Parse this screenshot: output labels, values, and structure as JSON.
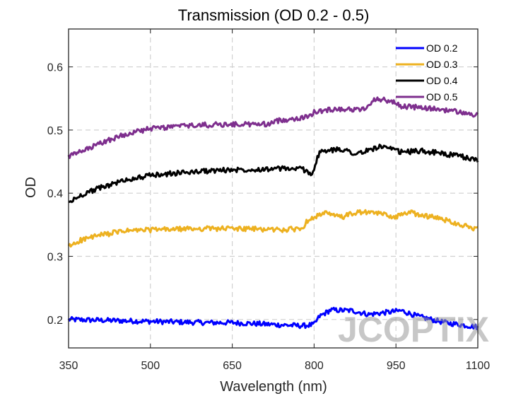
{
  "chart_data": {
    "type": "line",
    "title": "Transmission (OD 0.2 - 0.5)",
    "xlabel": "Wavelength (nm)",
    "ylabel": "OD",
    "xlim": [
      350,
      1100
    ],
    "ylim": [
      0.155,
      0.66
    ],
    "xticks": [
      350,
      500,
      650,
      800,
      950,
      1100
    ],
    "yticks": [
      0.2,
      0.3,
      0.4,
      0.5,
      0.6
    ],
    "ytick_labels": [
      "0.2",
      "0.3",
      "0.4",
      "0.5",
      "0.6"
    ],
    "grid": true,
    "legend_position": "top-right",
    "watermark": "JCOPTIX",
    "series": [
      {
        "name": "OD 0.2",
        "color": "#0000ff",
        "points": [
          [
            350,
            0.2
          ],
          [
            400,
            0.199
          ],
          [
            450,
            0.198
          ],
          [
            500,
            0.197
          ],
          [
            550,
            0.196
          ],
          [
            600,
            0.195
          ],
          [
            650,
            0.195
          ],
          [
            700,
            0.193
          ],
          [
            750,
            0.191
          ],
          [
            780,
            0.19
          ],
          [
            800,
            0.192
          ],
          [
            810,
            0.205
          ],
          [
            830,
            0.215
          ],
          [
            870,
            0.214
          ],
          [
            900,
            0.208
          ],
          [
            920,
            0.21
          ],
          [
            960,
            0.214
          ],
          [
            990,
            0.205
          ],
          [
            1040,
            0.195
          ],
          [
            1100,
            0.188
          ]
        ],
        "noise": 0.004
      },
      {
        "name": "OD 0.3",
        "color": "#edb120",
        "points": [
          [
            350,
            0.315
          ],
          [
            370,
            0.325
          ],
          [
            400,
            0.332
          ],
          [
            450,
            0.34
          ],
          [
            500,
            0.342
          ],
          [
            550,
            0.343
          ],
          [
            600,
            0.344
          ],
          [
            650,
            0.344
          ],
          [
            700,
            0.343
          ],
          [
            750,
            0.342
          ],
          [
            780,
            0.345
          ],
          [
            790,
            0.36
          ],
          [
            820,
            0.368
          ],
          [
            850,
            0.362
          ],
          [
            880,
            0.37
          ],
          [
            920,
            0.368
          ],
          [
            950,
            0.362
          ],
          [
            970,
            0.37
          ],
          [
            1000,
            0.365
          ],
          [
            1040,
            0.358
          ],
          [
            1070,
            0.35
          ],
          [
            1100,
            0.343
          ]
        ],
        "noise": 0.004
      },
      {
        "name": "OD 0.4",
        "color": "#000000",
        "points": [
          [
            350,
            0.385
          ],
          [
            380,
            0.4
          ],
          [
            420,
            0.412
          ],
          [
            460,
            0.422
          ],
          [
            500,
            0.428
          ],
          [
            550,
            0.432
          ],
          [
            600,
            0.435
          ],
          [
            650,
            0.437
          ],
          [
            700,
            0.438
          ],
          [
            750,
            0.439
          ],
          [
            780,
            0.438
          ],
          [
            795,
            0.43
          ],
          [
            800,
            0.44
          ],
          [
            810,
            0.465
          ],
          [
            850,
            0.47
          ],
          [
            880,
            0.462
          ],
          [
            920,
            0.474
          ],
          [
            960,
            0.465
          ],
          [
            1000,
            0.467
          ],
          [
            1040,
            0.462
          ],
          [
            1070,
            0.458
          ],
          [
            1100,
            0.452
          ]
        ],
        "noise": 0.004
      },
      {
        "name": "OD 0.5",
        "color": "#7e2f8e",
        "points": [
          [
            350,
            0.458
          ],
          [
            380,
            0.468
          ],
          [
            420,
            0.483
          ],
          [
            460,
            0.495
          ],
          [
            500,
            0.502
          ],
          [
            550,
            0.506
          ],
          [
            600,
            0.508
          ],
          [
            650,
            0.509
          ],
          [
            700,
            0.509
          ],
          [
            720,
            0.51
          ],
          [
            735,
            0.515
          ],
          [
            760,
            0.518
          ],
          [
            785,
            0.52
          ],
          [
            800,
            0.528
          ],
          [
            840,
            0.534
          ],
          [
            880,
            0.532
          ],
          [
            900,
            0.536
          ],
          [
            910,
            0.55
          ],
          [
            940,
            0.546
          ],
          [
            960,
            0.538
          ],
          [
            1000,
            0.535
          ],
          [
            1050,
            0.531
          ],
          [
            1100,
            0.523
          ]
        ],
        "noise": 0.004
      }
    ]
  }
}
